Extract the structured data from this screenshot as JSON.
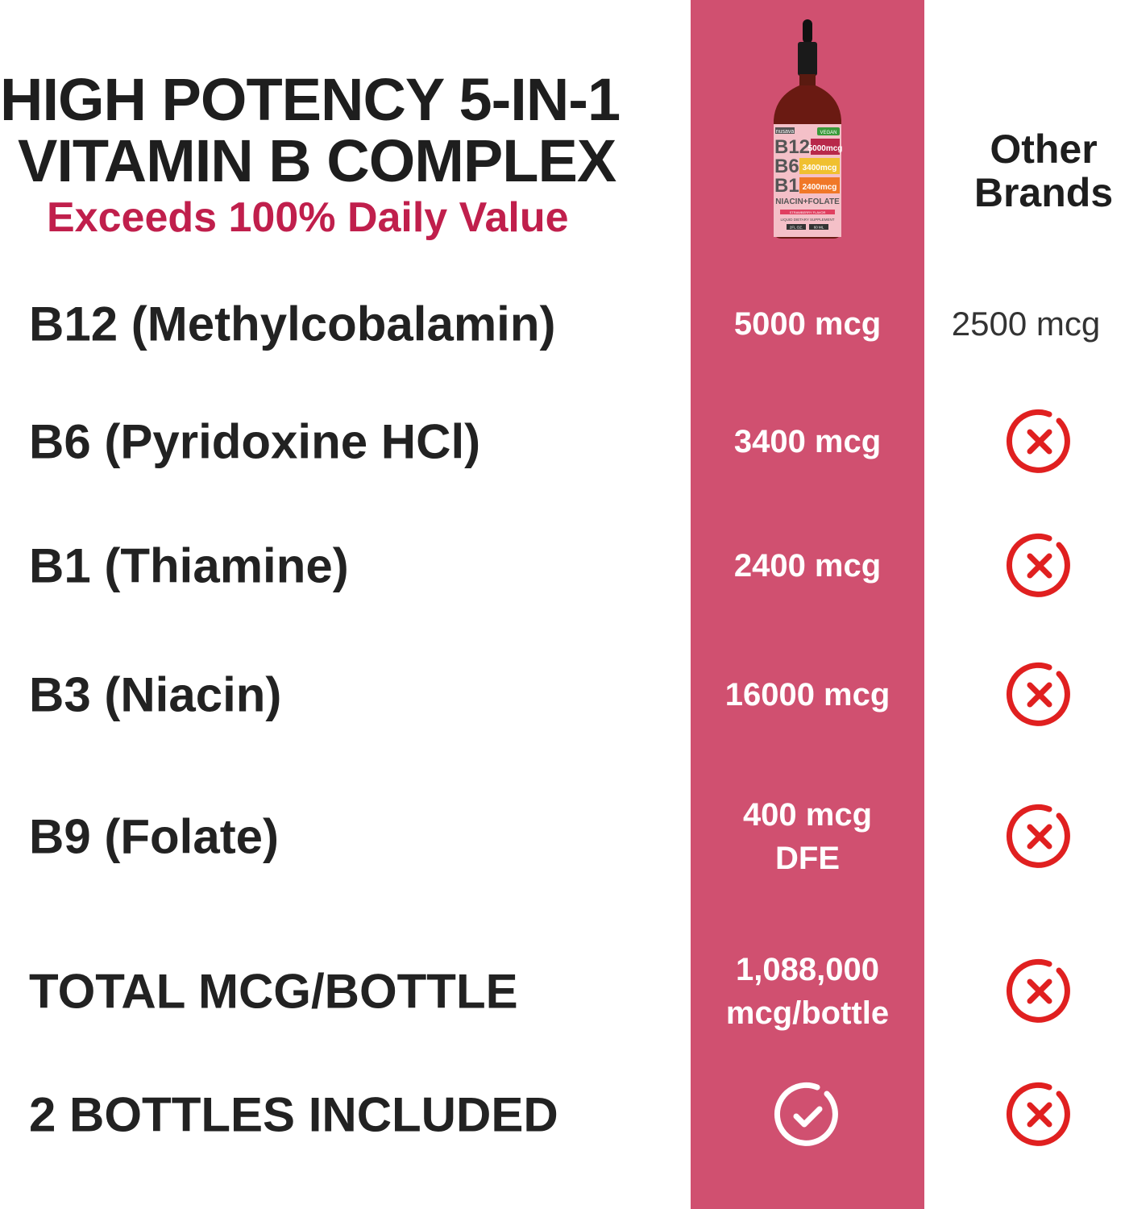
{
  "header": {
    "title_line1": "HIGH POTENCY 5-IN-1",
    "title_line2": "VITAMIN B COMPLEX",
    "subtitle": "Exceeds 100% Daily Value",
    "competitor_heading": "Other Brands"
  },
  "product_label": {
    "brand": "nusava",
    "badge": "VEGAN",
    "lines": [
      {
        "name": "B12",
        "amount": "5000mcg"
      },
      {
        "name": "B6",
        "amount": "3400mcg"
      },
      {
        "name": "B1",
        "amount": "2400mcg"
      }
    ],
    "extra": "NIACIN+FOLATE",
    "flavor": "STRAWBERRY FLAVOR",
    "type": "LIQUID DIETARY SUPPLEMENT",
    "size_oz": "2FL OZ.",
    "size_ml": "60 ML"
  },
  "rows": [
    {
      "label": "B12 (Methylcobalamin)",
      "ours": "5000 mcg",
      "other": "2500 mcg",
      "other_icon": null
    },
    {
      "label": "B6 (Pyridoxine HCl)",
      "ours": "3400 mcg",
      "other": null,
      "other_icon": "x-circle-icon"
    },
    {
      "label": "B1 (Thiamine)",
      "ours": "2400 mcg",
      "other": null,
      "other_icon": "x-circle-icon"
    },
    {
      "label": "B3 (Niacin)",
      "ours": "16000 mcg",
      "other": null,
      "other_icon": "x-circle-icon"
    },
    {
      "label": "B9 (Folate)",
      "ours": "400 mcg\nDFE",
      "other": null,
      "other_icon": "x-circle-icon"
    },
    {
      "label": "TOTAL MCG/BOTTLE",
      "ours": "1,088,000\nmcg/bottle",
      "other": null,
      "other_icon": "x-circle-icon"
    },
    {
      "label": "2 BOTTLES INCLUDED",
      "ours": null,
      "ours_icon": "check-circle-icon",
      "other": null,
      "other_icon": "x-circle-icon"
    }
  ],
  "colors": {
    "accent": "#d05070",
    "subtitle": "#c01f4c",
    "x_icon": "#e02020",
    "text": "#1e1e1e"
  }
}
